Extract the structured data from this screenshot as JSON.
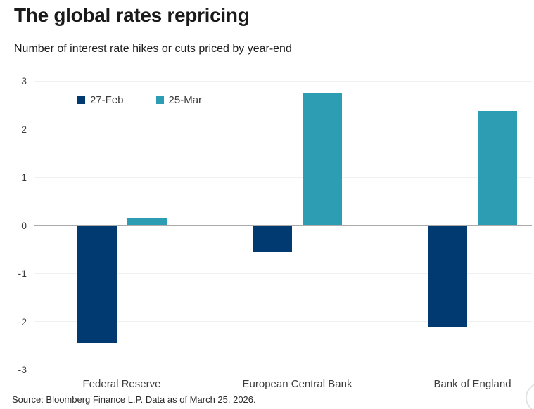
{
  "header": {
    "title": "The global rates repricing",
    "subtitle": "Number of interest rate hikes or cuts priced by year-end"
  },
  "footer": {
    "source": "Source: Bloomberg Finance L.P. Data as of March 25, 2026."
  },
  "colors": {
    "series_27feb": "#003a70",
    "series_25mar": "#2d9db3",
    "zero_line": "#ababab",
    "gridline": "#f0f0f0",
    "title_text": "#1a1a1a",
    "axis_text": "#3c3c3c"
  },
  "chart_data": {
    "type": "bar",
    "title": "The global rates repricing",
    "subtitle": "Number of interest rate hikes or cuts priced by year-end",
    "categories": [
      "Federal Reserve",
      "European Central Bank",
      "Bank of England"
    ],
    "series": [
      {
        "name": "27-Feb",
        "color": "#003a70",
        "values": [
          -2.45,
          -0.55,
          -2.12
        ]
      },
      {
        "name": "25-Mar",
        "color": "#2d9db3",
        "values": [
          0.15,
          2.73,
          2.37
        ]
      }
    ],
    "ylim": [
      -3,
      3
    ],
    "yticks": [
      3,
      2,
      1,
      0,
      -1,
      -2,
      -3
    ],
    "grid": true,
    "legend_position": "top-left-inside",
    "source": "Source: Bloomberg Finance L.P. Data as of March 25, 2026."
  }
}
